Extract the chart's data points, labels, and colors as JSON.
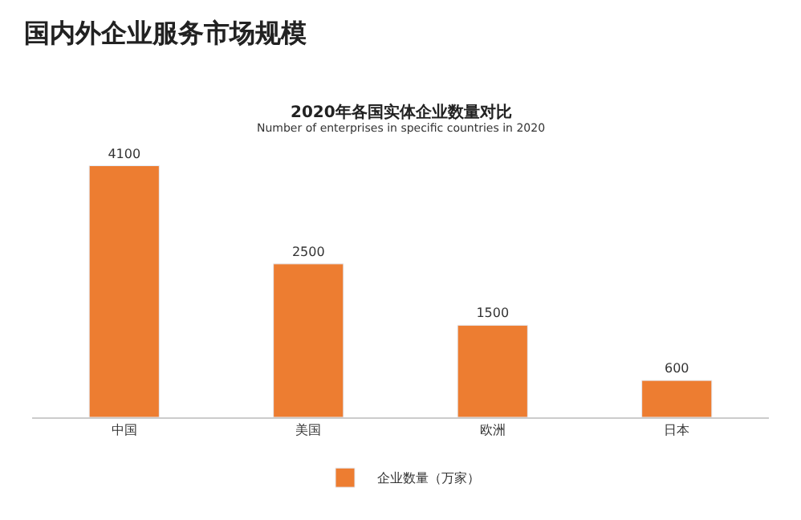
{
  "chart_data": {
    "type": "bar",
    "title": "国内外企业服务市场规模",
    "subtitle": "2020年各国实体企业数量对比",
    "annotations": [
      "Number of enterprises in specific countries in 2020"
    ],
    "categories": [
      "中国",
      "美国",
      "欧洲",
      "日本"
    ],
    "series": [
      {
        "name": "企业数量（万家）",
        "color": "#ed7d31",
        "values": [
          4100,
          2500,
          1500,
          600
        ]
      }
    ],
    "data_labels": true,
    "legend": "bottom",
    "tick_labels": "x"
  }
}
